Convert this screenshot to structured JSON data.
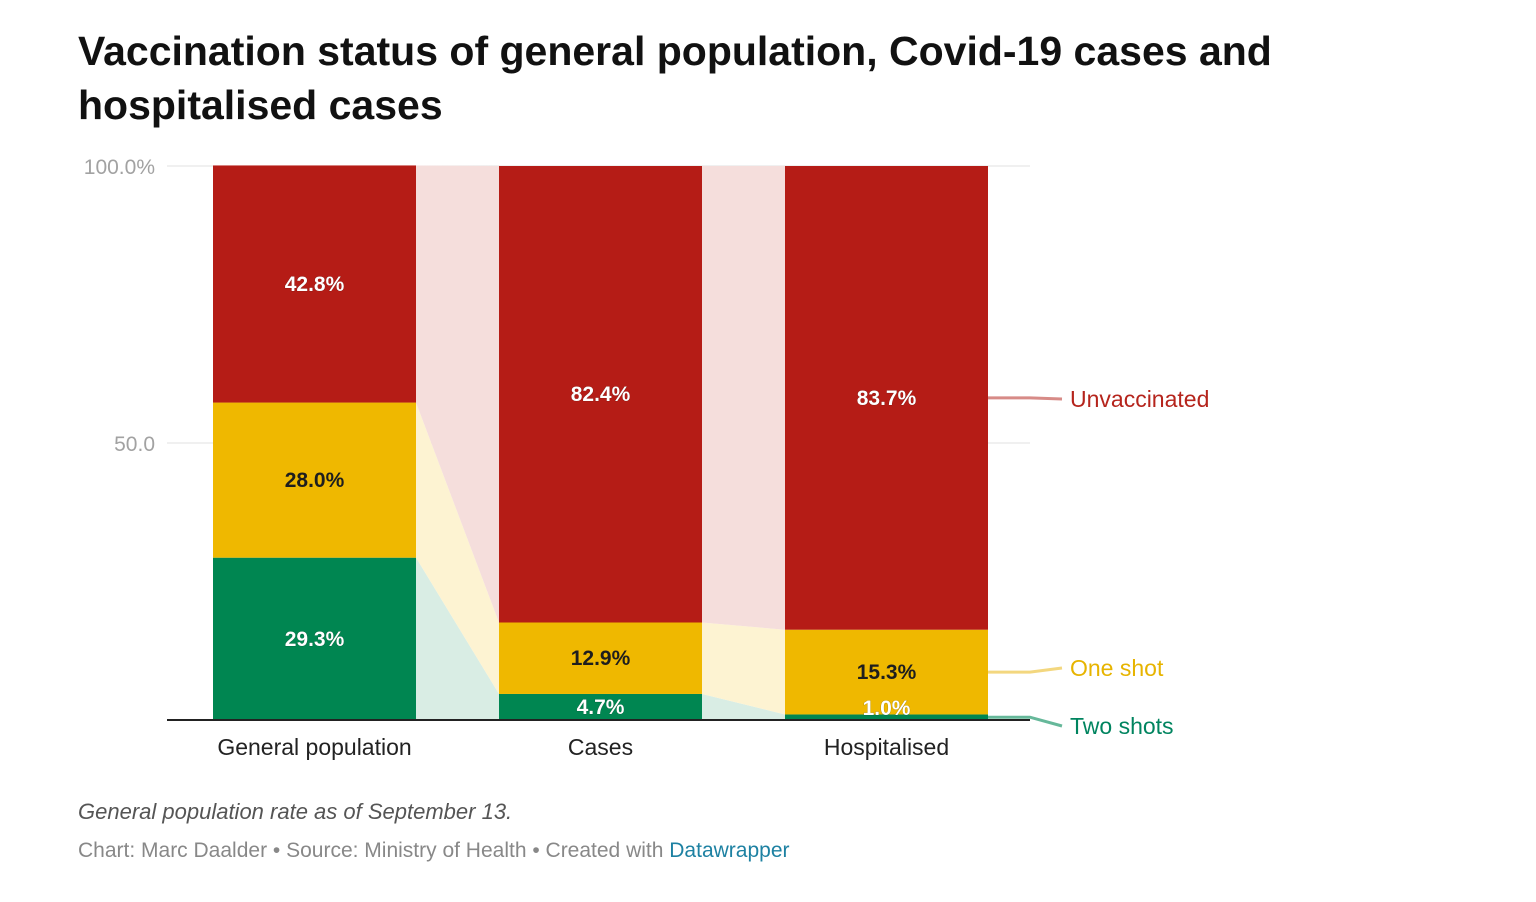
{
  "chart_data": {
    "type": "bar",
    "stacked": true,
    "title": "Vaccination status of general population, Covid-19 cases and hospitalised cases",
    "categories": [
      "General population",
      "Cases",
      "Hospitalised"
    ],
    "series": [
      {
        "name": "Two shots",
        "values": [
          29.3,
          4.7,
          1.0
        ],
        "labels": [
          "29.3%",
          "4.7%",
          "1.0%"
        ],
        "color": "#008651",
        "label_color": "#00845f",
        "legend_line_color": "#66b89a",
        "band_color": "#d9ede4"
      },
      {
        "name": "One shot",
        "values": [
          28.0,
          12.9,
          15.3
        ],
        "labels": [
          "28.0%",
          "12.9%",
          "15.3%"
        ],
        "color": "#efb800",
        "label_color": "#e7b400",
        "legend_line_color": "#f3d77f",
        "band_color": "#fdf3d2"
      },
      {
        "name": "Unvaccinated",
        "values": [
          42.8,
          82.4,
          83.7
        ],
        "labels": [
          "42.8%",
          "82.4%",
          "83.7%"
        ],
        "color": "#b51c16",
        "label_color": "#b5241c",
        "legend_line_color": "#d78b87",
        "band_color": "#f5dedc"
      }
    ],
    "y_ticks": [
      {
        "value": 100,
        "label": "100.0%"
      },
      {
        "value": 50,
        "label": "50.0"
      }
    ],
    "ylim": [
      0,
      100
    ],
    "grid": true,
    "legend": "right",
    "note": "General population rate as of September 13.",
    "credits": {
      "prefix": "Chart: Marc Daalder • Source: Ministry of Health • Created with ",
      "link_text": "Datawrapper"
    }
  }
}
